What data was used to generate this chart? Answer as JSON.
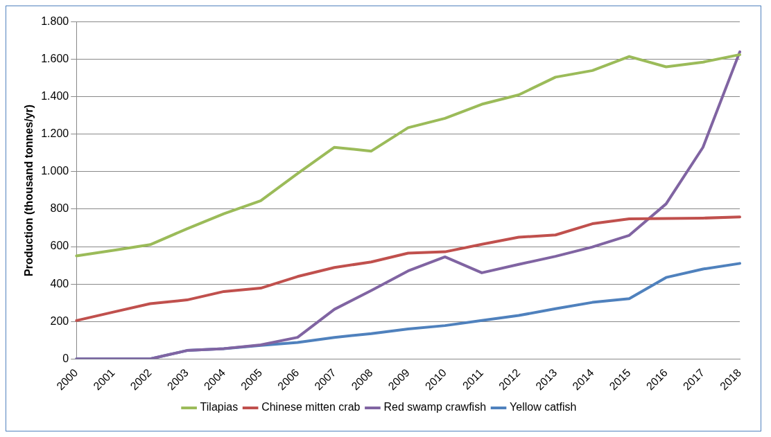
{
  "chart_data": {
    "type": "line",
    "ylabel": "Production (thousand tonnes/yr)",
    "categories": [
      "2000",
      "2001",
      "2002",
      "2003",
      "2004",
      "2005",
      "2006",
      "2007",
      "2008",
      "2009",
      "2010",
      "2011",
      "2012",
      "2013",
      "2014",
      "2015",
      "2016",
      "2017",
      "2018"
    ],
    "series": [
      {
        "name": "Tilapias",
        "color": "#9bbb59",
        "values": [
          550,
          580,
          610,
          695,
          775,
          845,
          990,
          1130,
          1110,
          1235,
          1285,
          1360,
          1410,
          1505,
          1540,
          1615,
          1560,
          1585,
          1625
        ]
      },
      {
        "name": "Chinese mitten crab",
        "color": "#c0504d",
        "values": [
          205,
          250,
          295,
          315,
          360,
          378,
          440,
          488,
          518,
          565,
          572,
          612,
          650,
          662,
          722,
          748,
          750,
          752,
          758
        ]
      },
      {
        "name": "Red swamp crawfish",
        "color": "#8064a2",
        "values": [
          0,
          0,
          0,
          45,
          55,
          75,
          115,
          265,
          365,
          470,
          545,
          460,
          505,
          548,
          598,
          660,
          828,
          1130,
          1640
        ]
      },
      {
        "name": "Yellow catfish",
        "color": "#4f81bd",
        "values": [
          0,
          0,
          0,
          45,
          55,
          72,
          88,
          115,
          135,
          160,
          178,
          205,
          232,
          268,
          302,
          322,
          435,
          480,
          510
        ]
      }
    ],
    "ylim": [
      0,
      1800
    ],
    "yticks": [
      0,
      {
        "value": 200,
        "label": "200"
      },
      {
        "value": 400,
        "label": "400"
      },
      {
        "value": 600,
        "label": "600"
      },
      {
        "value": 800,
        "label": "800"
      },
      {
        "value": 1000,
        "label": "1.000"
      },
      {
        "value": 1200,
        "label": "1.200"
      },
      {
        "value": 1400,
        "label": "1.400"
      },
      {
        "value": 1600,
        "label": "1.600"
      },
      {
        "value": 1800,
        "label": "1.800"
      }
    ],
    "grid": "y",
    "legend": "bottom",
    "marker": "none",
    "line_style": "solid"
  }
}
